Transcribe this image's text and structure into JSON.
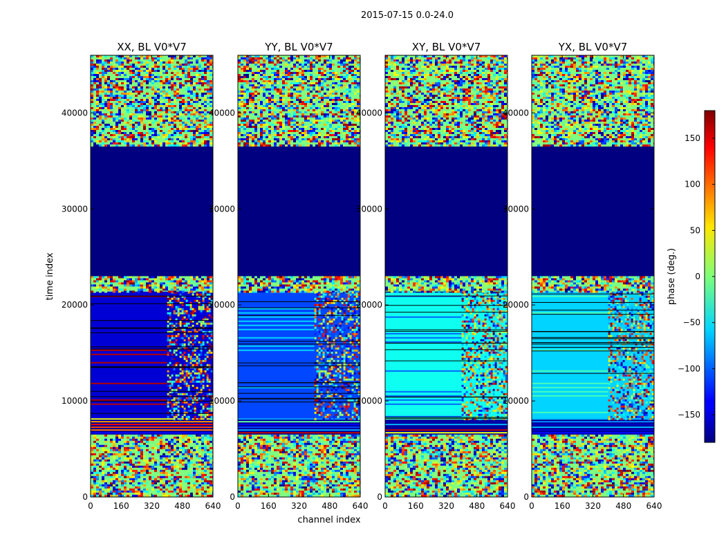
{
  "figure": {
    "suptitle": "2015-07-15 0.0-24.0"
  },
  "chart_data": {
    "type": "heatmap",
    "xlabel": "channel index",
    "ylabel": "time index",
    "xlim": [
      0,
      640
    ],
    "ylim": [
      0,
      46000
    ],
    "x_ticks": [
      0,
      160,
      320,
      480,
      640
    ],
    "y_ticks": [
      0,
      10000,
      20000,
      30000,
      40000
    ],
    "colormap": "jet",
    "colorbar": {
      "label": "phase (deg.)",
      "range": [
        -180,
        180
      ],
      "ticks": [
        150,
        100,
        50,
        0,
        -50,
        -100,
        -150
      ],
      "tick_labels": [
        "150",
        "100",
        "50",
        "0",
        "−50",
        "−100",
        "−150"
      ]
    },
    "panels": [
      {
        "title": "XX, BL V0*V7",
        "bands": [
          {
            "y": [
              0,
              6500
            ],
            "phase": 0,
            "kind": "noise"
          },
          {
            "y": [
              6500,
              8200
            ],
            "phase": -170,
            "kind": "lines"
          },
          {
            "y": [
              8200,
              21400
            ],
            "phase": -150,
            "kind": "stripes",
            "stripe_phase": 160,
            "stripe_x": [
              0,
              400
            ]
          },
          {
            "y": [
              21400,
              23000
            ],
            "phase": 0,
            "kind": "noise"
          },
          {
            "y": [
              23000,
              36500
            ],
            "phase": -180,
            "kind": "solid"
          },
          {
            "y": [
              36500,
              46000
            ],
            "phase": 0,
            "kind": "noise"
          }
        ]
      },
      {
        "title": "YY, BL V0*V7",
        "bands": [
          {
            "y": [
              0,
              6500
            ],
            "phase": 0,
            "kind": "noise"
          },
          {
            "y": [
              6500,
              8200
            ],
            "phase": -170,
            "kind": "lines"
          },
          {
            "y": [
              8200,
              21400
            ],
            "phase": -110,
            "kind": "stripes",
            "stripe_phase": -60,
            "stripe_x": [
              0,
              400
            ]
          },
          {
            "y": [
              21400,
              23000
            ],
            "phase": 0,
            "kind": "noise"
          },
          {
            "y": [
              23000,
              36500
            ],
            "phase": -180,
            "kind": "solid"
          },
          {
            "y": [
              36500,
              46000
            ],
            "phase": 0,
            "kind": "noise"
          }
        ]
      },
      {
        "title": "XY, BL V0*V7",
        "bands": [
          {
            "y": [
              0,
              6500
            ],
            "phase": 0,
            "kind": "noise"
          },
          {
            "y": [
              6500,
              8200
            ],
            "phase": -170,
            "kind": "lines"
          },
          {
            "y": [
              8200,
              21400
            ],
            "phase": -40,
            "kind": "stripes",
            "stripe_phase": -100,
            "stripe_x": [
              0,
              400
            ]
          },
          {
            "y": [
              21400,
              23000
            ],
            "phase": 0,
            "kind": "noise"
          },
          {
            "y": [
              23000,
              36500
            ],
            "phase": -180,
            "kind": "solid"
          },
          {
            "y": [
              36500,
              46000
            ],
            "phase": 0,
            "kind": "noise"
          }
        ]
      },
      {
        "title": "YX, BL V0*V7",
        "bands": [
          {
            "y": [
              0,
              6500
            ],
            "phase": 0,
            "kind": "noise"
          },
          {
            "y": [
              6500,
              8200
            ],
            "phase": -170,
            "kind": "lines"
          },
          {
            "y": [
              8200,
              21400
            ],
            "phase": -60,
            "kind": "stripes",
            "stripe_phase": -20,
            "stripe_x": [
              0,
              400
            ]
          },
          {
            "y": [
              21400,
              23000
            ],
            "phase": 0,
            "kind": "noise"
          },
          {
            "y": [
              23000,
              36500
            ],
            "phase": -180,
            "kind": "solid"
          },
          {
            "y": [
              36500,
              46000
            ],
            "phase": 0,
            "kind": "noise"
          }
        ]
      }
    ]
  }
}
